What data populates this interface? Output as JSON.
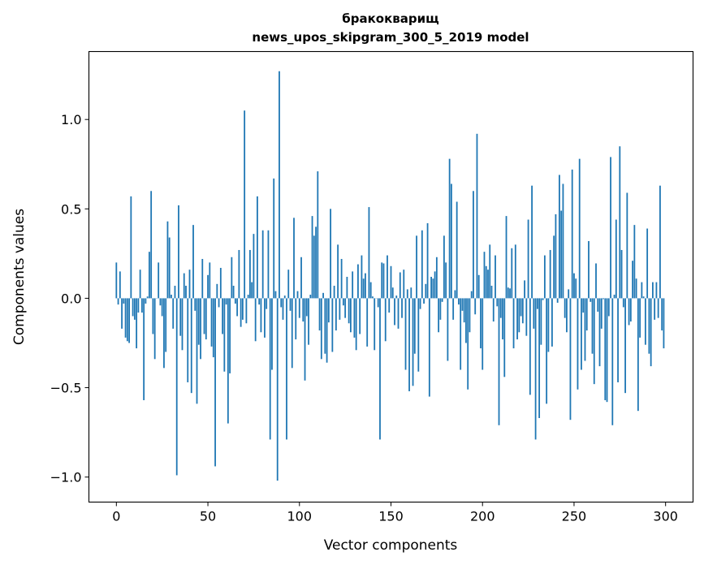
{
  "chart_data": {
    "type": "bar",
    "title": [
      "бракокварищ",
      "news_upos_skipgram_300_5_2019 model"
    ],
    "xlabel": "Vector components",
    "ylabel": "Components values",
    "xlim": [
      -15,
      315
    ],
    "ylim": [
      -1.14,
      1.38
    ],
    "xticks": [
      0,
      50,
      100,
      150,
      200,
      250,
      300
    ],
    "xtick_labels": [
      "0",
      "50",
      "100",
      "150",
      "200",
      "250",
      "300"
    ],
    "yticks": [
      -1.0,
      -0.5,
      0.0,
      0.5,
      1.0
    ],
    "ytick_labels": [
      "−1.0",
      "−0.5",
      "0.0",
      "0.5",
      "1.0"
    ],
    "grid": false,
    "bar_color": "#1f77b4",
    "values": [
      0.2,
      -0.035,
      0.15,
      -0.17,
      -0.03,
      -0.22,
      -0.24,
      -0.25,
      0.57,
      -0.1,
      -0.12,
      -0.28,
      -0.08,
      0.16,
      -0.08,
      -0.57,
      -0.03,
      0.01,
      0.26,
      0.6,
      -0.2,
      -0.34,
      0.0,
      0.2,
      -0.04,
      -0.1,
      -0.39,
      -0.3,
      0.43,
      0.34,
      0.02,
      -0.17,
      0.07,
      -0.99,
      0.52,
      -0.21,
      -0.29,
      0.14,
      0.07,
      -0.47,
      0.16,
      -0.53,
      0.41,
      -0.07,
      -0.59,
      -0.26,
      -0.34,
      0.22,
      -0.2,
      -0.23,
      0.13,
      0.2,
      -0.27,
      -0.33,
      -0.94,
      0.08,
      -0.05,
      0.17,
      -0.2,
      -0.41,
      -0.035,
      -0.7,
      -0.42,
      0.23,
      0.07,
      -0.03,
      -0.1,
      0.27,
      -0.16,
      -0.12,
      1.05,
      -0.14,
      0.02,
      0.27,
      0.09,
      0.36,
      -0.24,
      0.57,
      -0.035,
      -0.19,
      0.38,
      -0.22,
      -0.06,
      0.38,
      -0.79,
      -0.4,
      0.67,
      0.04,
      -1.02,
      1.27,
      -0.05,
      -0.12,
      0.015,
      -0.79,
      0.16,
      -0.07,
      -0.39,
      0.45,
      -0.23,
      0.04,
      -0.11,
      0.23,
      -0.13,
      -0.46,
      -0.1,
      -0.26,
      0.02,
      0.46,
      0.35,
      0.4,
      0.71,
      -0.18,
      -0.34,
      0.03,
      -0.31,
      -0.36,
      -0.135,
      0.5,
      -0.3,
      0.07,
      -0.18,
      0.3,
      -0.12,
      0.22,
      -0.04,
      -0.11,
      0.12,
      -0.14,
      -0.19,
      0.15,
      -0.22,
      -0.29,
      0.19,
      -0.2,
      0.24,
      0.11,
      0.14,
      -0.27,
      0.51,
      0.09,
      0.01,
      -0.29,
      0.0,
      -0.05,
      -0.79,
      0.2,
      0.195,
      -0.24,
      0.24,
      -0.08,
      0.18,
      0.06,
      -0.15,
      0.015,
      -0.17,
      0.145,
      -0.11,
      0.16,
      -0.4,
      0.05,
      -0.52,
      0.06,
      -0.49,
      -0.31,
      0.35,
      -0.41,
      -0.06,
      0.38,
      -0.03,
      0.08,
      0.42,
      -0.55,
      0.12,
      0.11,
      0.15,
      0.23,
      -0.19,
      -0.12,
      -0.02,
      0.35,
      0.2,
      -0.35,
      0.78,
      0.64,
      -0.12,
      0.045,
      0.54,
      -0.035,
      -0.4,
      -0.07,
      -0.135,
      -0.25,
      -0.51,
      -0.19,
      0.04,
      0.6,
      -0.09,
      0.92,
      0.13,
      -0.28,
      -0.4,
      0.26,
      0.18,
      0.16,
      0.3,
      0.07,
      -0.13,
      0.24,
      -0.045,
      -0.71,
      -0.11,
      -0.23,
      -0.44,
      0.46,
      0.06,
      0.055,
      0.28,
      -0.28,
      0.3,
      -0.23,
      -0.19,
      -0.1,
      -0.14,
      0.1,
      -0.21,
      0.44,
      -0.54,
      0.63,
      -0.17,
      -0.79,
      -0.06,
      -0.67,
      -0.26,
      -0.01,
      0.24,
      -0.59,
      -0.3,
      0.27,
      -0.27,
      0.35,
      0.47,
      -0.025,
      0.69,
      0.49,
      0.64,
      -0.11,
      -0.19,
      0.05,
      -0.68,
      0.72,
      0.14,
      0.11,
      -0.51,
      0.78,
      -0.4,
      -0.08,
      -0.35,
      -0.18,
      0.32,
      -0.02,
      -0.31,
      -0.48,
      0.195,
      -0.075,
      -0.38,
      -0.17,
      -0.005,
      -0.57,
      -0.58,
      -0.1,
      0.79,
      -0.71,
      0.02,
      0.44,
      -0.47,
      0.85,
      0.27,
      -0.05,
      -0.53,
      0.59,
      -0.15,
      -0.13,
      0.21,
      0.41,
      0.11,
      -0.63,
      -0.22,
      0.09,
      0.01,
      -0.26,
      0.39,
      -0.31,
      -0.38,
      0.09,
      -0.12,
      0.09,
      -0.11,
      0.63,
      -0.18,
      -0.28
    ]
  }
}
